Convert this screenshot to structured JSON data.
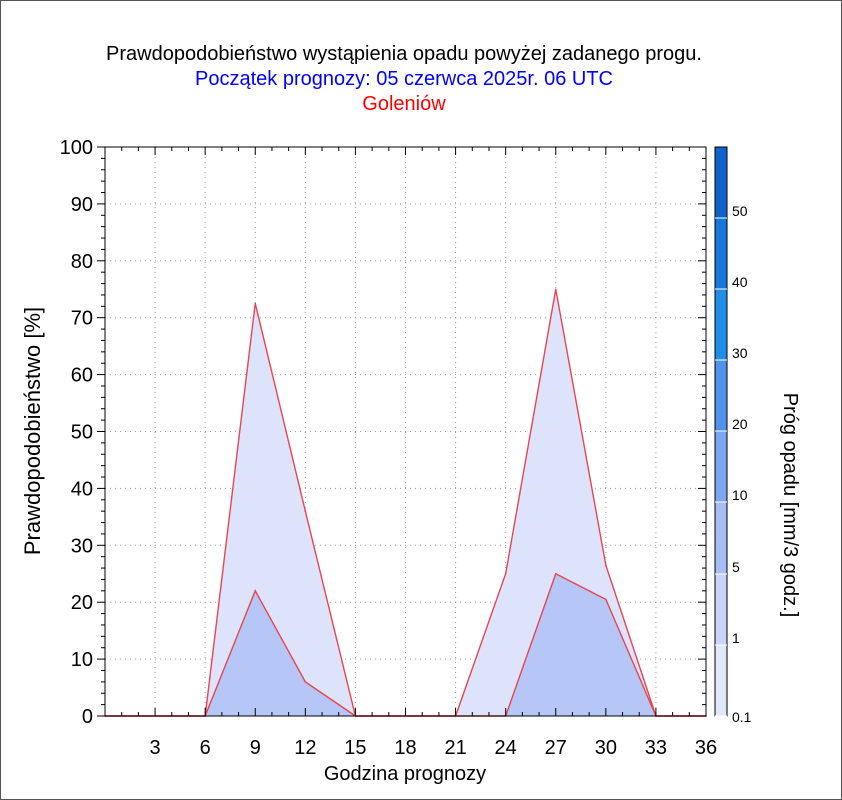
{
  "chart_data": {
    "type": "area",
    "title": "Prawdopodobieństwo wystąpienia opadu powyżej zadanego progu.",
    "subtitle": "Początek prognozy: 05 czerwca 2025r. 06 UTC",
    "location": "Goleniów",
    "xlabel": "Godzina prognozy",
    "ylabel": "Prawdopodobieństwo [%]",
    "colorbar_label": "Próg opadu [mm/3 godz.]",
    "xlim": [
      0,
      36
    ],
    "ylim": [
      0,
      100
    ],
    "x_ticks": [
      "3",
      "6",
      "9",
      "12",
      "15",
      "18",
      "21",
      "24",
      "27",
      "30",
      "33",
      "36"
    ],
    "y_ticks": [
      "0",
      "10",
      "20",
      "30",
      "40",
      "50",
      "60",
      "70",
      "80",
      "90",
      "100"
    ],
    "x": [
      0,
      3,
      6,
      9,
      12,
      15,
      18,
      21,
      24,
      27,
      30,
      33,
      36
    ],
    "series": [
      {
        "threshold": "0.1",
        "color": "#dce3fb",
        "values": [
          0,
          0,
          0,
          72.5,
          36,
          0,
          0,
          0,
          25,
          75,
          26.5,
          0,
          0
        ]
      },
      {
        "threshold": "1",
        "color": "#b6c6f7",
        "values": [
          0,
          0,
          0,
          22,
          6,
          0,
          0,
          0,
          0,
          25,
          20.5,
          0,
          0
        ]
      }
    ],
    "colorbar": {
      "labels": [
        "0.1",
        "1",
        "5",
        "10",
        "20",
        "30",
        "40",
        "50"
      ],
      "colors": [
        "#e2e8fb",
        "#c9d5f8",
        "#a8bdf4",
        "#7ea5ef",
        "#5292ea",
        "#1f8ee8",
        "#1678dc",
        "#1163cc",
        "#0a4fba"
      ]
    },
    "grid": true,
    "line_color": "#e8454f"
  }
}
